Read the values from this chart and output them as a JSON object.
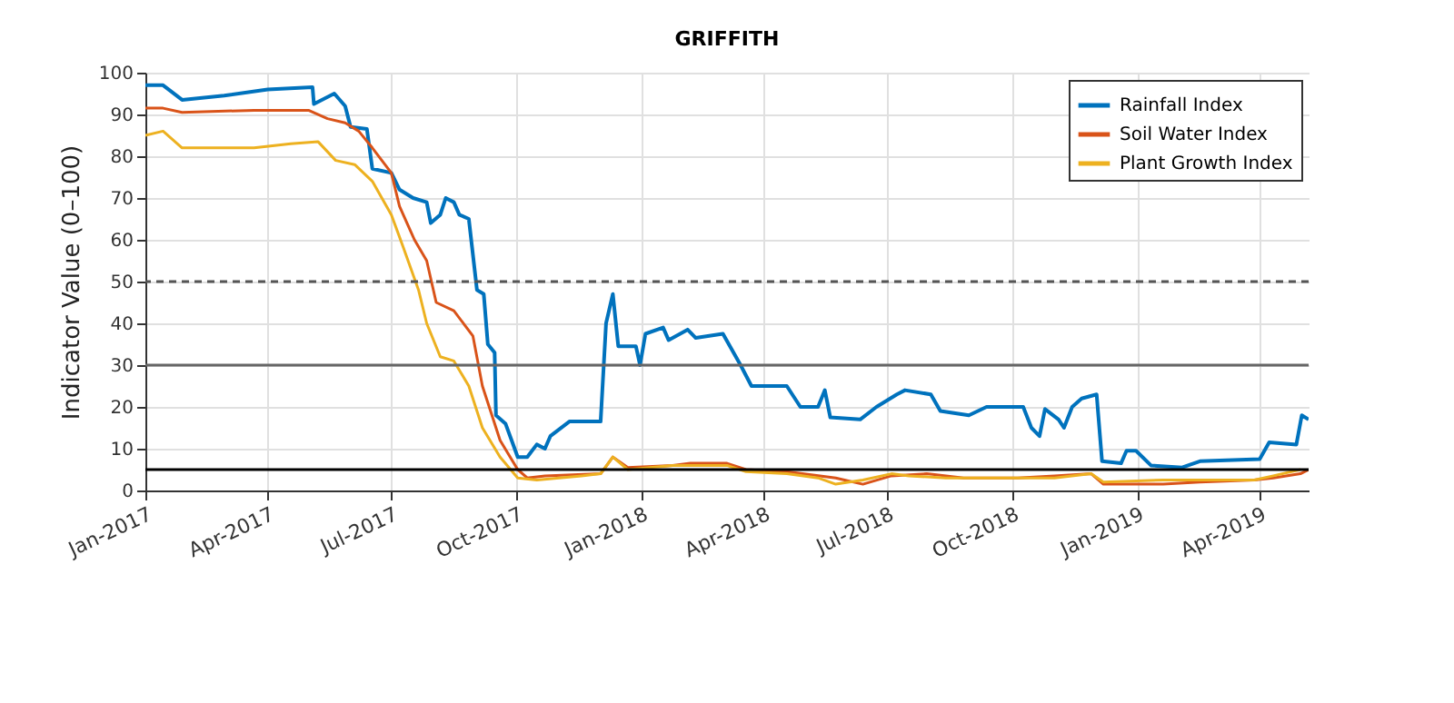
{
  "chart_data": {
    "type": "line",
    "title": "GRIFFITH",
    "ylabel": "Indicator Value (0–100)",
    "xlim": [
      "2017-01-01",
      "2019-05-07"
    ],
    "xticks": [
      {
        "value": "2017-01-01",
        "label": "Jan-2017"
      },
      {
        "value": "2017-04-01",
        "label": "Apr-2017"
      },
      {
        "value": "2017-07-01",
        "label": "Jul-2017"
      },
      {
        "value": "2017-10-01",
        "label": "Oct-2017"
      },
      {
        "value": "2018-01-01",
        "label": "Jan-2018"
      },
      {
        "value": "2018-04-01",
        "label": "Apr-2018"
      },
      {
        "value": "2018-07-01",
        "label": "Jul-2018"
      },
      {
        "value": "2018-10-01",
        "label": "Oct-2018"
      },
      {
        "value": "2019-01-01",
        "label": "Jan-2019"
      },
      {
        "value": "2019-04-01",
        "label": "Apr-2019"
      }
    ],
    "ylim": [
      0,
      100
    ],
    "yticks": [
      0,
      10,
      20,
      30,
      40,
      50,
      60,
      70,
      80,
      90,
      100
    ],
    "grid": true,
    "legend": "top right",
    "line_style": "solid",
    "ref_lines": [
      {
        "axis": "y",
        "value": 50,
        "color": "#555555",
        "line_style": "dashed"
      },
      {
        "axis": "y",
        "value": 30,
        "color": "#666666",
        "line_style": "solid"
      },
      {
        "axis": "y",
        "value": 5,
        "color": "#000000",
        "line_style": "solid"
      }
    ],
    "series": [
      {
        "name": "Rainfall Index",
        "color": "#0072bd",
        "x": [
          "2017-01-01",
          "2017-01-14",
          "2017-01-28",
          "2017-02-28",
          "2017-04-01",
          "2017-05-04",
          "2017-05-05",
          "2017-05-20",
          "2017-05-28",
          "2017-06-01",
          "2017-06-13",
          "2017-06-17",
          "2017-07-01",
          "2017-07-07",
          "2017-07-17",
          "2017-07-27",
          "2017-07-30",
          "2017-08-06",
          "2017-08-10",
          "2017-08-16",
          "2017-08-20",
          "2017-08-27",
          "2017-09-02",
          "2017-09-07",
          "2017-09-10",
          "2017-09-15",
          "2017-09-16",
          "2017-09-23",
          "2017-10-02",
          "2017-10-09",
          "2017-10-16",
          "2017-10-22",
          "2017-10-26",
          "2017-11-09",
          "2017-12-02",
          "2017-12-06",
          "2017-12-11",
          "2017-12-15",
          "2017-12-28",
          "2017-12-31",
          "2018-01-04",
          "2018-01-17",
          "2018-01-21",
          "2018-02-04",
          "2018-02-10",
          "2018-03-02",
          "2018-03-15",
          "2018-03-23",
          "2018-04-18",
          "2018-04-28",
          "2018-05-11",
          "2018-05-16",
          "2018-05-20",
          "2018-06-11",
          "2018-06-23",
          "2018-07-08",
          "2018-07-14",
          "2018-08-02",
          "2018-08-09",
          "2018-08-30",
          "2018-09-12",
          "2018-10-05",
          "2018-10-09",
          "2018-10-15",
          "2018-10-21",
          "2018-10-25",
          "2018-11-04",
          "2018-11-08",
          "2018-11-14",
          "2018-11-21",
          "2018-12-02",
          "2018-12-06",
          "2018-12-20",
          "2018-12-24",
          "2018-12-31",
          "2019-01-11",
          "2019-02-03",
          "2019-02-16",
          "2019-04-01",
          "2019-04-08",
          "2019-04-28",
          "2019-05-02",
          "2019-05-07"
        ],
        "values": [
          97,
          97,
          93.5,
          94.5,
          96,
          96.5,
          92.5,
          95,
          92,
          87,
          86.5,
          77,
          76,
          72,
          70,
          69,
          64,
          66,
          70,
          69,
          66,
          65,
          48,
          47,
          35,
          33,
          18,
          16,
          8,
          8,
          11,
          10,
          13,
          16.5,
          16.5,
          40,
          47,
          34.5,
          34.5,
          30,
          37.5,
          39,
          36,
          38.5,
          36.5,
          37.5,
          30,
          25,
          25,
          20,
          20,
          24,
          17.5,
          17,
          20,
          23,
          24,
          23,
          19,
          18,
          20,
          20,
          20,
          15,
          13,
          19.5,
          17,
          15,
          20,
          22,
          23,
          7,
          6.5,
          9.5,
          9.5,
          6,
          5.5,
          7,
          7.5,
          11.5,
          11,
          18,
          17
        ]
      },
      {
        "name": "Soil Water Index",
        "color": "#d95319",
        "x": [
          "2017-01-01",
          "2017-01-14",
          "2017-01-28",
          "2017-03-22",
          "2017-05-01",
          "2017-05-15",
          "2017-05-28",
          "2017-06-07",
          "2017-06-17",
          "2017-07-01",
          "2017-07-07",
          "2017-07-18",
          "2017-07-27",
          "2017-08-03",
          "2017-08-16",
          "2017-08-30",
          "2017-09-06",
          "2017-09-19",
          "2017-10-02",
          "2017-10-09",
          "2017-10-22",
          "2017-12-02",
          "2017-12-11",
          "2017-12-22",
          "2018-01-24",
          "2018-02-06",
          "2018-03-05",
          "2018-03-19",
          "2018-04-18",
          "2018-05-24",
          "2018-06-13",
          "2018-07-04",
          "2018-07-30",
          "2018-08-26",
          "2018-10-05",
          "2018-11-01",
          "2018-11-28",
          "2018-12-07",
          "2019-01-20",
          "2019-02-16",
          "2019-03-28",
          "2019-04-11",
          "2019-05-01",
          "2019-05-07"
        ],
        "values": [
          91.5,
          91.5,
          90.5,
          91,
          91,
          89,
          88,
          86,
          82,
          76,
          68,
          60,
          55,
          45,
          43,
          37,
          25,
          12,
          5,
          3,
          3.5,
          4,
          8,
          5.5,
          6,
          6.5,
          6.5,
          5,
          4.5,
          3,
          1.5,
          3.5,
          4,
          3,
          3,
          3.5,
          4,
          1.5,
          1.5,
          2,
          2.5,
          3,
          4,
          5
        ]
      },
      {
        "name": "Plant Growth Index",
        "color": "#edb120",
        "x": [
          "2017-01-01",
          "2017-01-14",
          "2017-01-28",
          "2017-03-22",
          "2017-04-18",
          "2017-05-08",
          "2017-05-21",
          "2017-06-04",
          "2017-06-17",
          "2017-07-01",
          "2017-07-10",
          "2017-07-21",
          "2017-07-27",
          "2017-08-06",
          "2017-08-16",
          "2017-08-27",
          "2017-09-06",
          "2017-09-19",
          "2017-10-02",
          "2017-10-16",
          "2017-11-18",
          "2017-12-02",
          "2017-12-11",
          "2017-12-22",
          "2018-01-24",
          "2018-03-05",
          "2018-03-19",
          "2018-04-18",
          "2018-05-11",
          "2018-05-24",
          "2018-06-13",
          "2018-07-04",
          "2018-07-17",
          "2018-08-13",
          "2018-09-08",
          "2018-11-01",
          "2018-11-28",
          "2018-12-07",
          "2019-01-20",
          "2019-03-28",
          "2019-04-11",
          "2019-05-01"
        ],
        "values": [
          85,
          86,
          82,
          82,
          83,
          83.5,
          79,
          78,
          74,
          66,
          58,
          48,
          40,
          32,
          31,
          25,
          15,
          8,
          3,
          2.5,
          3.5,
          4,
          8,
          5,
          6,
          6,
          4.5,
          4,
          3,
          1.5,
          2.5,
          4,
          3.5,
          3,
          3,
          3,
          4,
          2,
          2.5,
          2.5,
          3.5,
          5
        ]
      }
    ]
  }
}
